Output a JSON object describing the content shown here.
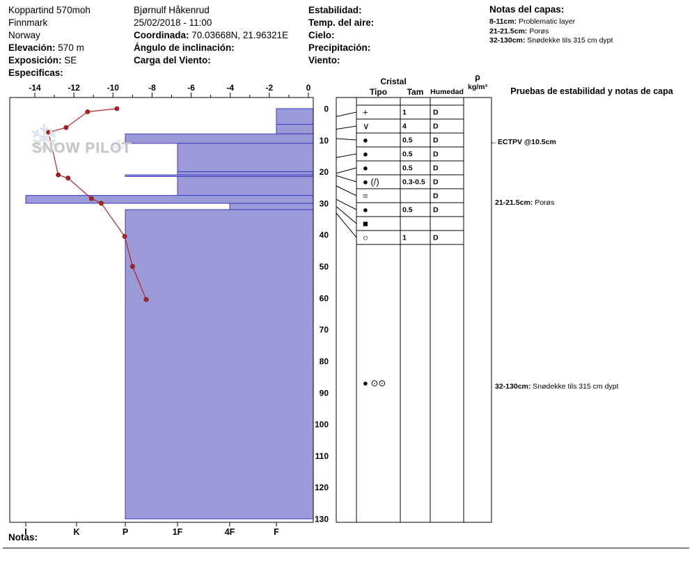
{
  "header": {
    "site": {
      "name": "Koppartind 570moh",
      "region": "Finnmark",
      "country": "Norway",
      "elevation_label": "Elevación:",
      "elevation_value": "570 m",
      "aspect_label": "Exposición:",
      "aspect_value": "SE",
      "specifics_label": "Especificas:"
    },
    "observer": {
      "name": "Bjørnulf Håkenrud",
      "datetime": "25/02/2018 - 11:00",
      "coordinate_label": "Coordinada:",
      "coordinate_value": "70.03668N, 21.96321E",
      "slope_angle_label": "Ángulo de inclinación:",
      "wind_load_label": "Carga del Viento:"
    },
    "conditions": {
      "stability_label": "Estabilidad:",
      "air_temp_label": "Temp. del aire:",
      "sky_label": "Cielo:",
      "precip_label": "Precipitación:",
      "wind_label": "Viento:"
    },
    "layer_notes": {
      "title": "Notas del capas:",
      "items": [
        {
          "range": "8-11cm:",
          "text": "Problematic layer"
        },
        {
          "range": "21-21.5cm:",
          "text": "Porøs"
        },
        {
          "range": "32-130cm:",
          "text": "Snødekke tils 315 cm dypt"
        }
      ]
    }
  },
  "watermark": {
    "text": "SNOW PILOT"
  },
  "table": {
    "header": {
      "cristal": "Cristal",
      "tipo": "Tipo",
      "tam": "Tam",
      "humedad": "Humedad",
      "rho": "ρ",
      "rho_units": "kg/m³",
      "tests_title": "Pruebas de estabilidad y notas de capa"
    },
    "rows": [
      {
        "tipo": "+",
        "tam": "1",
        "humedad": "D"
      },
      {
        "tipo": "∨",
        "tam": "4",
        "humedad": "D"
      },
      {
        "tipo": "●",
        "tam": "0.5",
        "humedad": "D"
      },
      {
        "tipo": "●",
        "tam": "0.5",
        "humedad": "D"
      },
      {
        "tipo": "●",
        "tam": "0.5",
        "humedad": "D"
      },
      {
        "tipo": "● (/)",
        "tam": "0.3-0.5",
        "humedad": "D"
      },
      {
        "tipo": "=",
        "tam": "",
        "humedad": "D"
      },
      {
        "tipo": "●",
        "tam": "0.5",
        "humedad": "D"
      },
      {
        "tipo": "■",
        "tam": "",
        "humedad": ""
      },
      {
        "tipo": "○",
        "tam": "1",
        "humedad": "D"
      }
    ],
    "deep_crystal": {
      "tipo": "● ⊙⊙",
      "depth_cm": 87
    }
  },
  "annotations": [
    {
      "depth_cm": 10.5,
      "prefix": "←",
      "bold": "ECTPV @10.5cm",
      "text": ""
    },
    {
      "depth_cm": 30.2,
      "prefix": "",
      "bold": "21-21.5cm:",
      "text": " Porøs"
    },
    {
      "depth_cm": 88.5,
      "prefix": "",
      "bold": "32-130cm:",
      "text": " Snødekke tils 315 cm dypt"
    }
  ],
  "footer": {
    "notes_label": "Notas:"
  },
  "colors": {
    "bar_fill": "#9a9ad8",
    "bar_border": "#3b3bbf",
    "temp_line": "#b22222",
    "frame": "#000000",
    "watermark_text": "#c6c6c6",
    "watermark_flake": "#dce2ee"
  },
  "chart_data": {
    "type": "snowpit-profile",
    "depth_axis": {
      "unit": "cm",
      "min": 0,
      "max": 130,
      "ticks": [
        0,
        10,
        20,
        30,
        40,
        50,
        60,
        70,
        80,
        90,
        100,
        110,
        120,
        130
      ]
    },
    "temperature_axis": {
      "unit": "°C",
      "min": -14,
      "max": 0,
      "tick_labels": [
        "-14",
        "-12",
        "-10",
        "-8",
        "-6",
        "-4",
        "-2",
        "0"
      ],
      "minor_step": 1
    },
    "hardness_axis": {
      "categories": [
        "I",
        "K",
        "P",
        "1F",
        "4F",
        "F"
      ]
    },
    "layers": [
      {
        "top_cm": 0,
        "bottom_cm": 5,
        "hardness": "F"
      },
      {
        "top_cm": 5,
        "bottom_cm": 8,
        "hardness": "F"
      },
      {
        "top_cm": 8,
        "bottom_cm": 11,
        "hardness": "P"
      },
      {
        "top_cm": 11,
        "bottom_cm": 20,
        "hardness": "1F"
      },
      {
        "top_cm": 20,
        "bottom_cm": 21,
        "hardness": "1F"
      },
      {
        "top_cm": 21,
        "bottom_cm": 21.5,
        "hardness": "P"
      },
      {
        "top_cm": 21.5,
        "bottom_cm": 27.5,
        "hardness": "1F"
      },
      {
        "top_cm": 27.5,
        "bottom_cm": 30,
        "hardness": "I"
      },
      {
        "top_cm": 30,
        "bottom_cm": 32,
        "hardness": "4F"
      },
      {
        "top_cm": 32,
        "bottom_cm": 130,
        "hardness": "P"
      }
    ],
    "temperature_profile": {
      "unit_temp": "°C",
      "unit_depth": "cm",
      "points_depth_temp": [
        [
          0,
          -9.8
        ],
        [
          1,
          -11.3
        ],
        [
          6,
          -12.4
        ],
        [
          7.5,
          -13.3
        ],
        [
          21,
          -12.8
        ],
        [
          22,
          -12.3
        ],
        [
          28.5,
          -11.1
        ],
        [
          30,
          -10.6
        ],
        [
          40.5,
          -9.4
        ],
        [
          50,
          -9.0
        ],
        [
          60.5,
          -8.3
        ]
      ]
    }
  }
}
